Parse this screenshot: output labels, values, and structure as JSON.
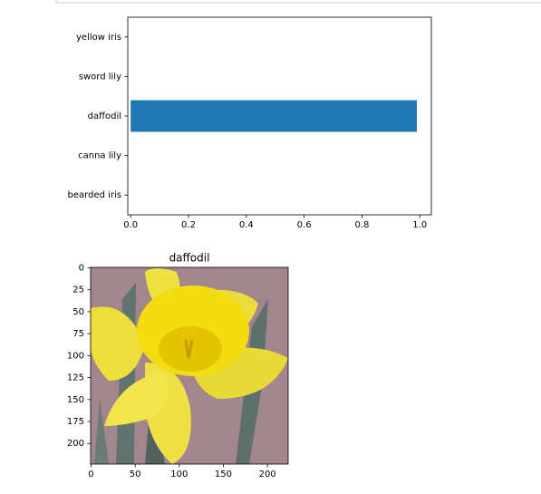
{
  "chart_data": [
    {
      "type": "barh",
      "categories": [
        "bearded iris",
        "canna lily",
        "daffodil",
        "sword lily",
        "yellow iris"
      ],
      "values": [
        0,
        0,
        0.99,
        0,
        0
      ],
      "color": "#1f77b4",
      "xlim": [
        -0.01,
        1.04
      ],
      "xticks": [
        {
          "value": 0,
          "label": "0.0"
        },
        0.2,
        0.4,
        0.6,
        0.8,
        {
          "value": 1,
          "label": "1.0"
        }
      ]
    },
    {
      "type": "image",
      "title": "daffodil",
      "xlim": [
        -0.5,
        223.5
      ],
      "ylim": [
        223.5,
        -0.5
      ],
      "xticks": [
        0,
        50,
        100,
        150,
        200
      ],
      "yticks": [
        0,
        25,
        50,
        75,
        100,
        125,
        150,
        175,
        200
      ]
    }
  ]
}
